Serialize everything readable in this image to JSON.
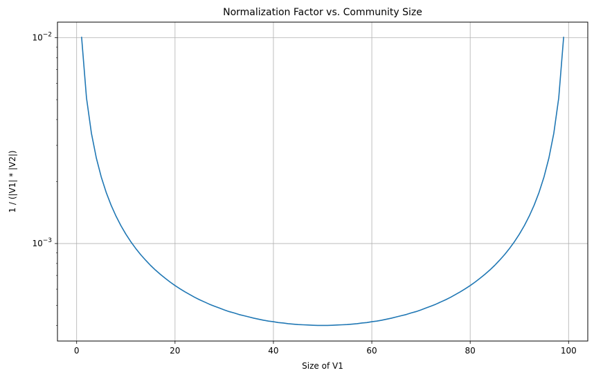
{
  "chart_data": {
    "type": "line",
    "title": "Normalization Factor vs. Community Size",
    "xlabel": "Size of V1",
    "ylabel": "1 / (|V1| * |V2|)",
    "total_size": 100,
    "x_range": [
      1,
      99
    ],
    "xlim": [
      -3.9,
      103.9
    ],
    "ylim": [
      0.000336,
      0.0119
    ],
    "yscale": "log",
    "grid": true,
    "x_ticks": [
      0,
      20,
      40,
      60,
      80,
      100
    ],
    "x_tick_labels": [
      "0",
      "20",
      "40",
      "60",
      "80",
      "100"
    ],
    "y_ticks": [
      0.001,
      0.01
    ],
    "y_tick_labels": [
      {
        "base": "10",
        "exp": "−3"
      },
      {
        "base": "10",
        "exp": "−2"
      }
    ],
    "series": [
      {
        "color": "#1f77b4",
        "x": [
          1,
          2,
          3,
          4,
          5,
          6,
          7,
          8,
          9,
          10,
          11,
          12,
          13,
          14,
          15,
          16,
          17,
          18,
          19,
          20,
          21,
          22,
          23,
          24,
          25,
          26,
          27,
          28,
          29,
          30,
          31,
          32,
          33,
          34,
          35,
          36,
          37,
          38,
          39,
          40,
          41,
          42,
          43,
          44,
          45,
          46,
          47,
          48,
          49,
          50,
          51,
          52,
          53,
          54,
          55,
          56,
          57,
          58,
          59,
          60,
          61,
          62,
          63,
          64,
          65,
          66,
          67,
          68,
          69,
          70,
          71,
          72,
          73,
          74,
          75,
          76,
          77,
          78,
          79,
          80,
          81,
          82,
          83,
          84,
          85,
          86,
          87,
          88,
          89,
          90,
          91,
          92,
          93,
          94,
          95,
          96,
          97,
          98,
          99
        ],
        "y": [
          0.010101,
          0.005102,
          0.003436,
          0.002604,
          0.002105,
          0.001773,
          0.001536,
          0.001359,
          0.001221,
          0.001111,
          0.001021,
          0.000947,
          0.000884,
          0.000831,
          0.000784,
          0.000744,
          0.000709,
          0.000678,
          0.00065,
          0.000625,
          0.000603,
          0.000583,
          0.000565,
          0.000548,
          0.000533,
          0.00052,
          0.000507,
          0.000496,
          0.000486,
          0.000476,
          0.000467,
          0.00046,
          0.000452,
          0.000446,
          0.00044,
          0.000434,
          0.000429,
          0.000424,
          0.00042,
          0.000417,
          0.000413,
          0.000411,
          0.000408,
          0.000406,
          0.000404,
          0.000403,
          0.000402,
          0.000401,
          0.0004,
          0.0004,
          0.0004,
          0.000401,
          0.000402,
          0.000403,
          0.000404,
          0.000406,
          0.000408,
          0.000411,
          0.000413,
          0.000417,
          0.00042,
          0.000424,
          0.000429,
          0.000434,
          0.00044,
          0.000446,
          0.000452,
          0.00046,
          0.000467,
          0.000476,
          0.000486,
          0.000496,
          0.000507,
          0.00052,
          0.000533,
          0.000548,
          0.000565,
          0.000583,
          0.000603,
          0.000625,
          0.00065,
          0.000678,
          0.000709,
          0.000744,
          0.000784,
          0.000831,
          0.000884,
          0.000947,
          0.001021,
          0.001111,
          0.001221,
          0.001359,
          0.001536,
          0.001773,
          0.002105,
          0.002604,
          0.003436,
          0.005102,
          0.010101
        ]
      }
    ]
  }
}
